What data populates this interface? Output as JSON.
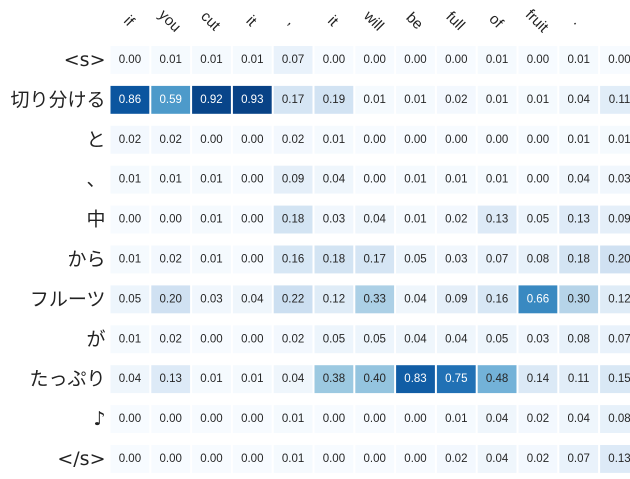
{
  "chart_data": {
    "type": "heatmap",
    "title": "",
    "xlabel": "",
    "ylabel": "",
    "x_categories": [
      "if",
      "you",
      "cut",
      "it",
      ",",
      "it",
      "will",
      "be",
      "full",
      "of",
      "fruit",
      ".",
      ""
    ],
    "y_categories": [
      "<s>",
      "切り分ける",
      "と",
      "、",
      "中",
      "から",
      "フルーツ",
      "が",
      "たっぷり",
      "♪",
      "</s>"
    ],
    "values": [
      [
        0.0,
        0.01,
        0.01,
        0.01,
        0.07,
        0.0,
        0.0,
        0.0,
        0.0,
        0.01,
        0.0,
        0.01,
        0.0
      ],
      [
        0.86,
        0.59,
        0.92,
        0.93,
        0.17,
        0.19,
        0.01,
        0.01,
        0.02,
        0.01,
        0.01,
        0.04,
        0.11
      ],
      [
        0.02,
        0.02,
        0.0,
        0.0,
        0.02,
        0.01,
        0.0,
        0.0,
        0.0,
        0.0,
        0.0,
        0.01,
        0.01
      ],
      [
        0.01,
        0.01,
        0.01,
        0.0,
        0.09,
        0.04,
        0.0,
        0.01,
        0.01,
        0.01,
        0.0,
        0.04,
        0.03
      ],
      [
        0.0,
        0.0,
        0.01,
        0.0,
        0.18,
        0.03,
        0.04,
        0.01,
        0.02,
        0.13,
        0.05,
        0.13,
        0.09
      ],
      [
        0.01,
        0.02,
        0.01,
        0.0,
        0.16,
        0.18,
        0.17,
        0.05,
        0.03,
        0.07,
        0.08,
        0.18,
        0.2
      ],
      [
        0.05,
        0.2,
        0.03,
        0.04,
        0.22,
        0.12,
        0.33,
        0.04,
        0.09,
        0.16,
        0.66,
        0.3,
        0.12
      ],
      [
        0.01,
        0.02,
        0.0,
        0.0,
        0.02,
        0.05,
        0.05,
        0.04,
        0.04,
        0.05,
        0.03,
        0.08,
        0.07
      ],
      [
        0.04,
        0.13,
        0.01,
        0.01,
        0.04,
        0.38,
        0.4,
        0.83,
        0.75,
        0.48,
        0.14,
        0.11,
        0.15
      ],
      [
        0.0,
        0.0,
        0.0,
        0.0,
        0.01,
        0.0,
        0.0,
        0.0,
        0.01,
        0.04,
        0.02,
        0.04,
        0.08
      ],
      [
        0.0,
        0.0,
        0.0,
        0.0,
        0.01,
        0.0,
        0.0,
        0.0,
        0.02,
        0.04,
        0.02,
        0.07,
        0.13
      ]
    ],
    "value_range": [
      0,
      1
    ],
    "colormap": "Blues",
    "grid": false,
    "legend": "none",
    "colors": {
      "low": "#f7fbff",
      "high": "#08306b",
      "dark_text": "#262626",
      "light_text": "#ffffff"
    }
  }
}
